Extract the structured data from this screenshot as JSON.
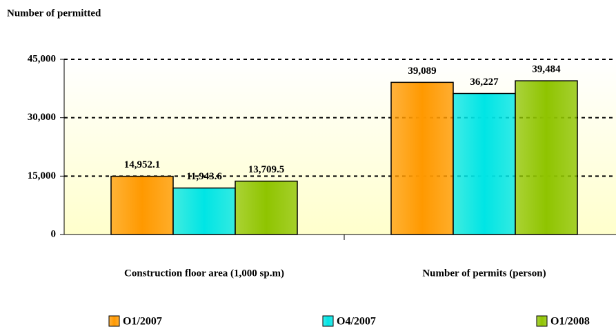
{
  "chart_data": {
    "type": "bar",
    "title": "Number of permitted",
    "categories": [
      "Construction floor area (1,000 sp.m)",
      "Number of permits (person)"
    ],
    "series": [
      {
        "name": "O1/2007",
        "color": "#ff9900",
        "values": [
          14952.1,
          39089
        ],
        "value_labels": [
          "14,952.1",
          "39,089"
        ]
      },
      {
        "name": "O4/2007",
        "color": "#00e5e5",
        "values": [
          11943.6,
          36227
        ],
        "value_labels": [
          "11,943.6",
          "36,227"
        ]
      },
      {
        "name": "O1/2008",
        "color": "#8fc400",
        "values": [
          13709.5,
          39484
        ],
        "value_labels": [
          "13,709.5",
          "39,484"
        ]
      }
    ],
    "ylim": [
      0,
      45000
    ],
    "yticks": [
      0,
      {
        "value": 15000,
        "label": "15,000"
      },
      {
        "value": 30000,
        "label": "30,000"
      },
      {
        "value": 45000,
        "label": "45,000"
      }
    ],
    "grid": true
  }
}
